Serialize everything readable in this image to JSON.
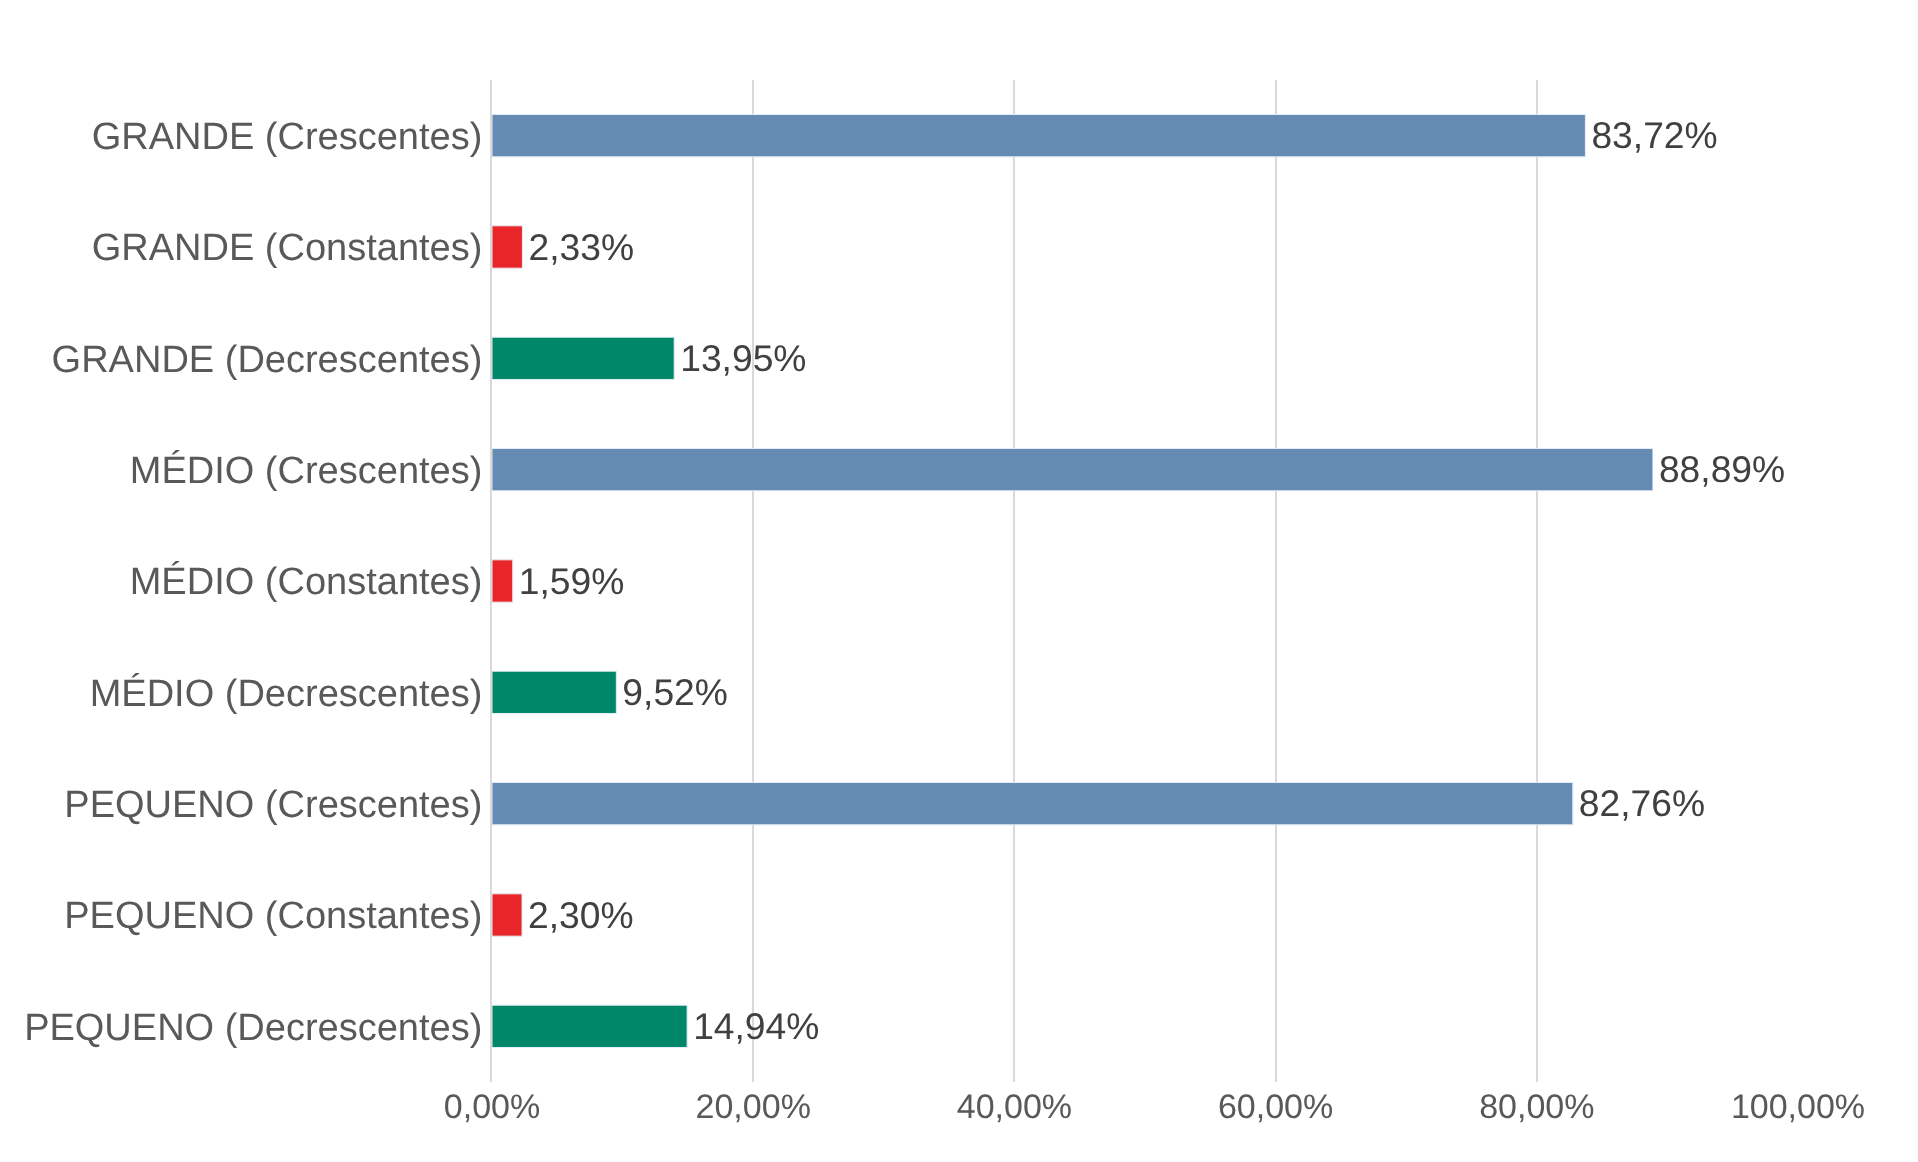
{
  "chart_data": {
    "type": "bar",
    "orientation": "horizontal",
    "categories": [
      "GRANDE (Crescentes)",
      "GRANDE (Constantes)",
      "GRANDE (Decrescentes)",
      "MÉDIO (Crescentes)",
      "MÉDIO (Constantes)",
      "MÉDIO (Decrescentes)",
      "PEQUENO (Crescentes)",
      "PEQUENO (Constantes)",
      "PEQUENO (Decrescentes)"
    ],
    "values": [
      83.72,
      2.33,
      13.95,
      88.89,
      1.59,
      9.52,
      82.76,
      2.3,
      14.94
    ],
    "colors": [
      "#658bb3",
      "#e8262a",
      "#00876a",
      "#658bb3",
      "#e8262a",
      "#00876a",
      "#658bb3",
      "#e8262a",
      "#00876a"
    ],
    "value_labels": [
      "83,72%",
      "2,33%",
      "13,95%",
      "88,89%",
      "1,59%",
      "9,52%",
      "82,76%",
      "2,30%",
      "14,94%"
    ],
    "xlim": [
      0,
      100
    ],
    "xticks": [
      {
        "value": 0,
        "label": "0,00%"
      },
      {
        "value": 20,
        "label": "20,00%"
      },
      {
        "value": 40,
        "label": "40,00%"
      },
      {
        "value": 60,
        "label": "60,00%"
      },
      {
        "value": 80,
        "label": "80,00%"
      },
      {
        "value": 100,
        "label": "100,00%"
      }
    ],
    "grid": "x"
  }
}
